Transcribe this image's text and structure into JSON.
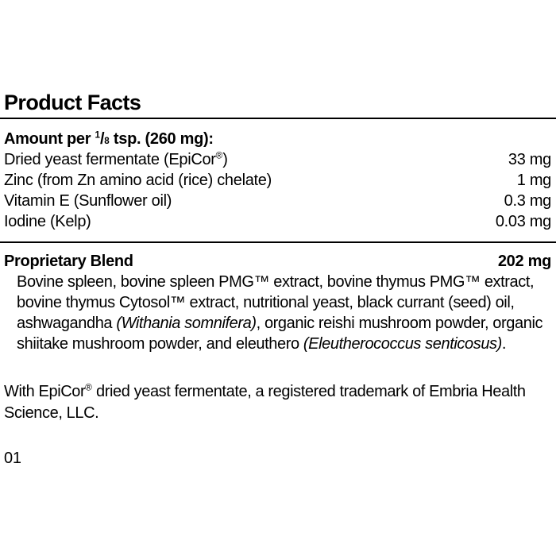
{
  "page": {
    "background": "#ffffff",
    "text_color": "#000000",
    "code": "01"
  },
  "header": {
    "title": "Product Facts"
  },
  "serving": {
    "label_segments": [
      {
        "t": "Amount per "
      },
      {
        "t": "1",
        "s": "sup"
      },
      {
        "t": "/"
      },
      {
        "t": "8",
        "s": "sub"
      },
      {
        "t": " tsp. (260 mg):"
      }
    ]
  },
  "ingredients": [
    {
      "name_segments": [
        {
          "t": "Dried yeast fermentate (EpiCor"
        },
        {
          "t": "®",
          "s": "sup"
        },
        {
          "t": ")"
        }
      ],
      "amount": "33 mg"
    },
    {
      "name_segments": [
        {
          "t": "Zinc (from Zn amino acid (rice) chelate)"
        }
      ],
      "amount": "1 mg"
    },
    {
      "name_segments": [
        {
          "t": "Vitamin E (Sunflower oil)"
        }
      ],
      "amount": "0.3 mg"
    },
    {
      "name_segments": [
        {
          "t": "Iodine (Kelp)"
        }
      ],
      "amount": "0.03 mg"
    }
  ],
  "proprietary_blend": {
    "title": "Proprietary Blend",
    "amount": "202 mg",
    "description_segments": [
      {
        "t": "Bovine spleen, bovine spleen PMG™ extract, bovine thymus PMG™ extract,"
      },
      {
        "br": true
      },
      {
        "t": "bovine thymus Cytosol™ extract, nutritional yeast, black currant (seed) oil,"
      },
      {
        "br": true
      },
      {
        "t": "ashwagandha "
      },
      {
        "t": "(Withania somnifera)",
        "s": "i"
      },
      {
        "t": ", organic reishi mushroom powder, organic"
      },
      {
        "br": true
      },
      {
        "t": "shiitake mushroom powder, and eleuthero "
      },
      {
        "t": "(Eleutherococcus senticosus)",
        "s": "i"
      },
      {
        "t": "."
      }
    ]
  },
  "footnote": {
    "segments": [
      {
        "t": "With EpiCor"
      },
      {
        "t": "®",
        "s": "sup"
      },
      {
        "t": " dried yeast fermentate, a registered trademark of Embria Health"
      },
      {
        "br": true
      },
      {
        "t": "Science, LLC."
      }
    ]
  }
}
